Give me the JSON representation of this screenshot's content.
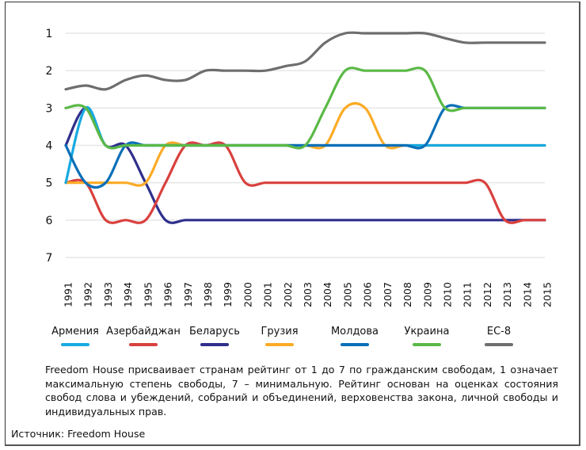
{
  "chart_data": {
    "type": "line",
    "title": "",
    "xlabel": "",
    "ylabel": "",
    "y_inverted": true,
    "ylim": [
      1,
      7
    ],
    "yticks": [
      "1",
      "2",
      "3",
      "4",
      "5",
      "6",
      "7"
    ],
    "grid": true,
    "legend_position": "bottom",
    "x": [
      "1991",
      "1992",
      "1993",
      "1994",
      "1995",
      "1996",
      "1997",
      "1998",
      "1999",
      "2000",
      "2001",
      "2002",
      "2003",
      "2004",
      "2005",
      "2006",
      "2007",
      "2008",
      "2009",
      "2010",
      "2011",
      "2012",
      "2013",
      "2014",
      "2015"
    ],
    "series": [
      {
        "name": "Армения",
        "color": "#17a9e1",
        "values": [
          5,
          3,
          4,
          4,
          4,
          4,
          4,
          4,
          4,
          4,
          4,
          4,
          4,
          4,
          4,
          4,
          4,
          4,
          4,
          4,
          4,
          4,
          4,
          4,
          4
        ]
      },
      {
        "name": "Азербайджан",
        "color": "#d9413e",
        "values": [
          5,
          5,
          6,
          6,
          6,
          5,
          4,
          4,
          4,
          5,
          5,
          5,
          5,
          5,
          5,
          5,
          5,
          5,
          5,
          5,
          5,
          5,
          6,
          6,
          6
        ]
      },
      {
        "name": "Беларусь",
        "color": "#2f2f8c",
        "values": [
          4,
          3,
          4,
          4,
          5,
          6,
          6,
          6,
          6,
          6,
          6,
          6,
          6,
          6,
          6,
          6,
          6,
          6,
          6,
          6,
          6,
          6,
          6,
          6,
          6
        ]
      },
      {
        "name": "Грузия",
        "color": "#fbab26",
        "values": [
          5,
          5,
          5,
          5,
          5,
          4,
          4,
          4,
          4,
          4,
          4,
          4,
          4,
          4,
          3,
          3,
          4,
          4,
          4,
          4,
          4,
          4,
          4,
          4,
          4
        ]
      },
      {
        "name": "Молдова",
        "color": "#0a6fb8",
        "values": [
          4,
          5,
          5,
          4,
          4,
          4,
          4,
          4,
          4,
          4,
          4,
          4,
          4,
          4,
          4,
          4,
          4,
          4,
          4,
          3,
          3,
          3,
          3,
          3,
          3
        ]
      },
      {
        "name": "Украина",
        "color": "#5ab946",
        "values": [
          3,
          3,
          4,
          4,
          4,
          4,
          4,
          4,
          4,
          4,
          4,
          4,
          4,
          3,
          2,
          2,
          2,
          2,
          2,
          3,
          3,
          3,
          3,
          3,
          3
        ]
      },
      {
        "name": "ЕС-8",
        "color": "#6e6e6e",
        "values": [
          2.5,
          2.4,
          2.5,
          2.25,
          2.13,
          2.25,
          2.25,
          2,
          2,
          2,
          2,
          1.88,
          1.75,
          1.25,
          1,
          1,
          1,
          1,
          1,
          1.13,
          1.25,
          1.25,
          1.25,
          1.25,
          1.25
        ]
      }
    ]
  },
  "note": "Freedom House присваивает странам рейтинг от 1 до 7 по гражданским свободам, 1 означает максимальную степень свободы, 7 – минимальную. Рейтинг основан на оценках состояния свобод слова и убеждений, собраний и объединений, верховенства закона, личной свободы и индивидуальных прав.",
  "source": "Источник: Freedom House"
}
